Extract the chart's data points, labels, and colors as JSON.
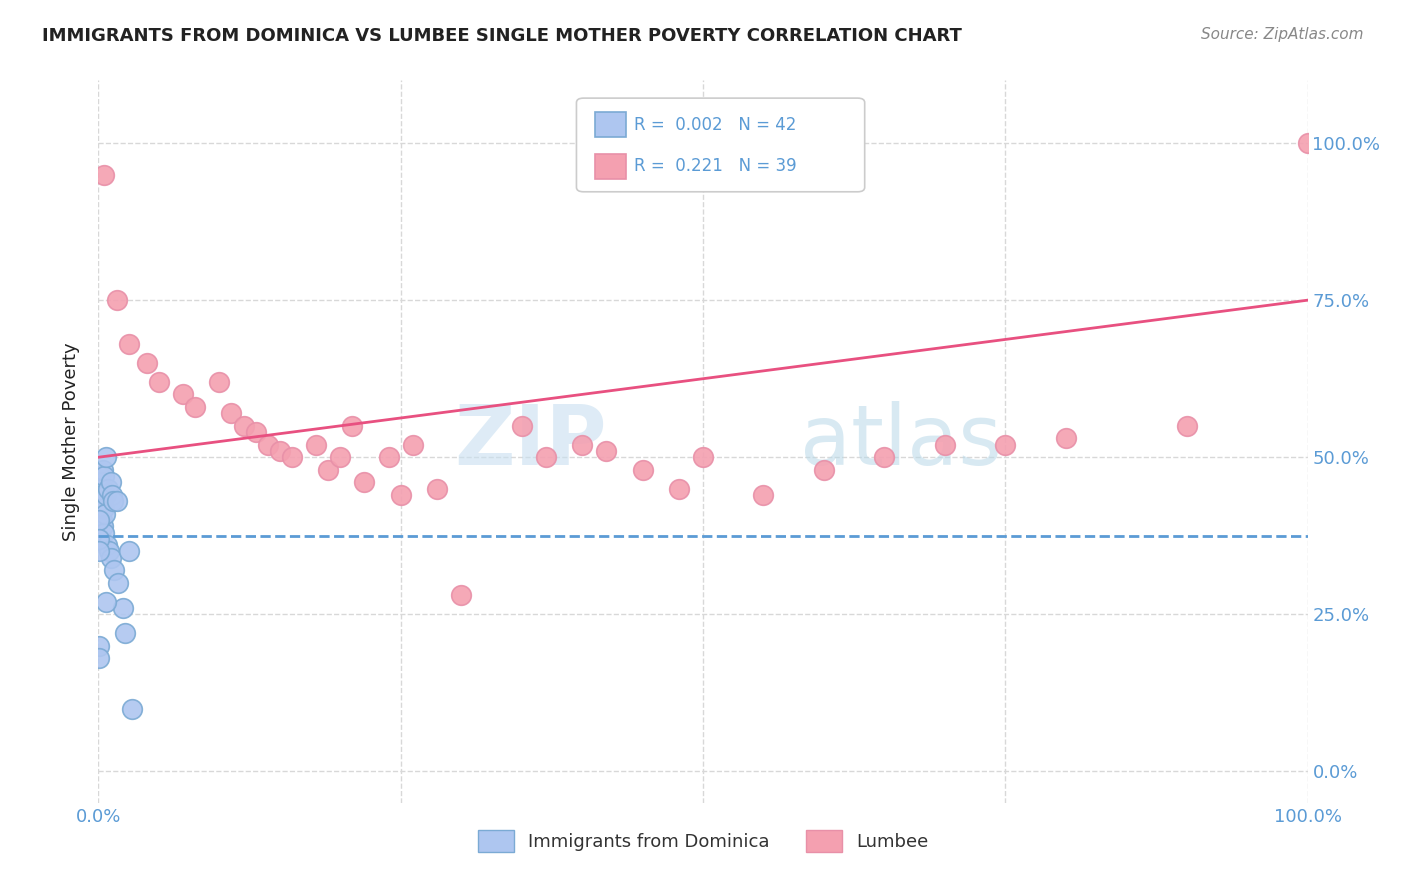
{
  "title": "IMMIGRANTS FROM DOMINICA VS LUMBEE SINGLE MOTHER POVERTY CORRELATION CHART",
  "source": "Source: ZipAtlas.com",
  "ylabel": "Single Mother Poverty",
  "legend_items": [
    {
      "label": "Immigrants from Dominica",
      "color": "#aec6f0",
      "R": "0.002",
      "N": "42"
    },
    {
      "label": "Lumbee",
      "color": "#f4a0b0",
      "R": "0.221",
      "N": "39"
    }
  ],
  "watermark_zip": "ZIP",
  "watermark_atlas": "atlas",
  "blue_scatter_x": [
    0.1,
    0.1,
    0.1,
    0.1,
    0.15,
    0.15,
    0.2,
    0.2,
    0.2,
    0.25,
    0.25,
    0.3,
    0.3,
    0.35,
    0.4,
    0.4,
    0.45,
    0.5,
    0.5,
    0.55,
    0.6,
    0.65,
    0.7,
    0.8,
    0.9,
    1.0,
    1.0,
    1.1,
    1.2,
    1.3,
    1.5,
    1.6,
    2.0,
    2.2,
    2.5,
    0.05,
    0.05,
    0.08,
    0.08,
    0.08,
    0.6,
    2.8
  ],
  "blue_scatter_y": [
    45,
    43,
    40,
    38,
    47,
    44,
    46,
    42,
    37,
    45,
    41,
    44,
    40,
    43,
    48,
    39,
    42,
    47,
    38,
    41,
    50,
    44,
    36,
    45,
    35,
    46,
    34,
    44,
    43,
    32,
    43,
    30,
    26,
    22,
    35,
    20,
    18,
    40,
    37,
    35,
    27,
    10
  ],
  "pink_scatter_x": [
    0.5,
    1.5,
    2.5,
    4.0,
    5.0,
    7.0,
    8.0,
    10.0,
    11.0,
    12.0,
    13.0,
    14.0,
    15.0,
    16.0,
    18.0,
    19.0,
    20.0,
    21.0,
    22.0,
    24.0,
    25.0,
    26.0,
    28.0,
    30.0,
    35.0,
    37.0,
    40.0,
    42.0,
    45.0,
    48.0,
    50.0,
    55.0,
    60.0,
    65.0,
    70.0,
    75.0,
    80.0,
    90.0,
    100.0
  ],
  "pink_scatter_y": [
    95,
    75,
    68,
    65,
    62,
    60,
    58,
    62,
    57,
    55,
    54,
    52,
    51,
    50,
    52,
    48,
    50,
    55,
    46,
    50,
    44,
    52,
    45,
    28,
    55,
    50,
    52,
    51,
    48,
    45,
    50,
    44,
    48,
    50,
    52,
    52,
    53,
    55,
    100
  ],
  "blue_line_intercept": 37.5,
  "blue_line_slope": 0.0,
  "pink_line_intercept": 50.0,
  "pink_line_slope": 0.25,
  "blue_line_color": "#5b9bd5",
  "pink_line_color": "#e85080",
  "scatter_blue_color": "#aec6f0",
  "scatter_pink_color": "#f4a0b0",
  "scatter_edge_blue": "#7baad4",
  "scatter_edge_pink": "#e890a8",
  "background_color": "#ffffff",
  "grid_color": "#d8d8d8",
  "title_color": "#222222",
  "source_color": "#888888",
  "axis_label_color": "#5b9bd5",
  "legend_text_color": "#333333",
  "legend_value_color": "#5b9bd5",
  "ytick_labels_right": [
    "100.0%",
    "75.0%",
    "50.0%",
    "25.0%"
  ],
  "ytick_values": [
    0,
    25,
    50,
    75,
    100
  ],
  "xlim": [
    0,
    100
  ],
  "ylim": [
    -5,
    110
  ]
}
